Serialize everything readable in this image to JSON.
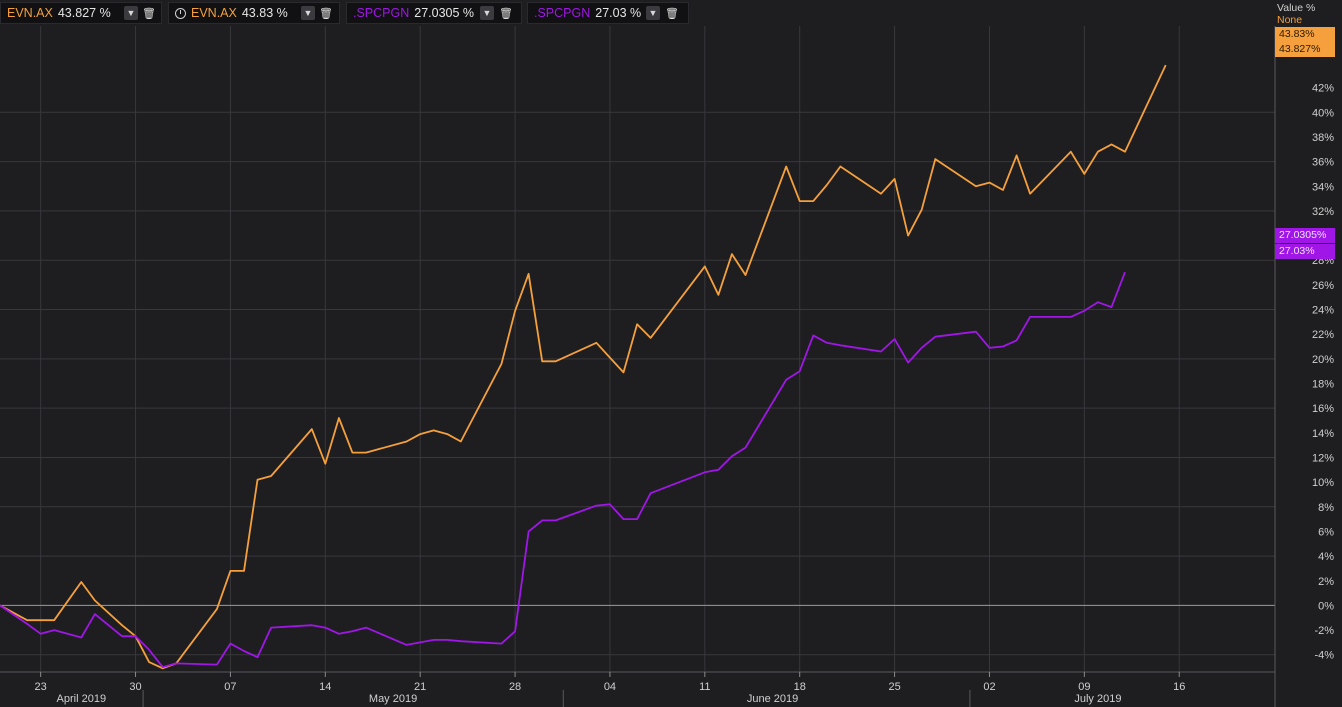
{
  "colors": {
    "evn": "#f5a03c",
    "spc": "#a016e6",
    "background": "#1e1e21",
    "grid": "#38383c",
    "zero_line": "#8c8c8c"
  },
  "legend": [
    {
      "symbol": "EVN.AX",
      "value": "43.827 %",
      "color": "#f5a03c",
      "clock": false,
      "dropdown_icon": "chevron-down-icon",
      "trash_icon": "trash-icon"
    },
    {
      "symbol": "EVN.AX",
      "value": "43.83 %",
      "color": "#f5a03c",
      "clock": true,
      "dropdown_icon": "chevron-down-icon",
      "trash_icon": "trash-icon"
    },
    {
      "symbol": ".SPCPGN",
      "value": "27.0305 %",
      "color": "#a016e6",
      "clock": false,
      "dropdown_icon": "chevron-down-icon",
      "trash_icon": "trash-icon"
    },
    {
      "symbol": ".SPCPGN",
      "value": "27.03 %",
      "color": "#a016e6",
      "clock": false,
      "dropdown_icon": "chevron-down-icon",
      "trash_icon": "trash-icon"
    }
  ],
  "axis_header": {
    "title": "Value %",
    "mode": "None"
  },
  "last_value_tags": [
    {
      "text": "43.83%",
      "color": "#f5a03c",
      "value": 43.83
    },
    {
      "text": "43.827%",
      "color": "#f5a03c",
      "value": 43.827
    },
    {
      "text": "27.0305%",
      "color": "#a016e6",
      "value": 27.0305
    },
    {
      "text": "27.03%",
      "color": "#a016e6",
      "value": 27.03
    }
  ],
  "chart_data": {
    "type": "line",
    "y_ticks": [
      "42%",
      "40%",
      "38%",
      "36%",
      "34%",
      "32%",
      "30%",
      "28%",
      "26%",
      "24%",
      "22%",
      "20%",
      "18%",
      "16%",
      "14%",
      "12%",
      "10%",
      "8%",
      "6%",
      "4%",
      "2%",
      "0%",
      "-2%",
      "-4%"
    ],
    "y_tick_values": [
      42,
      40,
      38,
      36,
      34,
      32,
      30,
      28,
      26,
      24,
      22,
      20,
      18,
      16,
      14,
      12,
      10,
      8,
      6,
      4,
      2,
      0,
      -2,
      -4
    ],
    "ylim": [
      -5.4,
      47
    ],
    "x_ticks": [
      "23",
      "30",
      "07",
      "14",
      "21",
      "28",
      "04",
      "11",
      "18",
      "25",
      "02",
      "09",
      "16"
    ],
    "x_tick_dates": [
      "2019-04-23",
      "2019-04-30",
      "2019-05-07",
      "2019-05-14",
      "2019-05-21",
      "2019-05-28",
      "2019-06-04",
      "2019-06-11",
      "2019-06-18",
      "2019-06-25",
      "2019-07-02",
      "2019-07-09",
      "2019-07-16"
    ],
    "months": [
      {
        "label": "April 2019",
        "date": "2019-04-26"
      },
      {
        "label": "May 2019",
        "date": "2019-05-19"
      },
      {
        "label": "June 2019",
        "date": "2019-06-16"
      },
      {
        "label": "July 2019",
        "date": "2019-07-10"
      }
    ],
    "month_separators": [
      "2019-05-01",
      "2019-06-01",
      "2019-07-01"
    ],
    "xlim": [
      "2019-04-20",
      "2019-07-21"
    ],
    "series": [
      {
        "name": "EVN.AX",
        "color": "#f5a03c",
        "points": [
          [
            "2019-04-20",
            0
          ],
          [
            "2019-04-22",
            -1.2
          ],
          [
            "2019-04-23",
            -1.2
          ],
          [
            "2019-04-24",
            -1.2
          ],
          [
            "2019-04-26",
            1.9
          ],
          [
            "2019-04-27",
            0.4
          ],
          [
            "2019-04-29",
            -1.6
          ],
          [
            "2019-04-30",
            -2.5
          ],
          [
            "2019-05-01",
            -4.6
          ],
          [
            "2019-05-02",
            -5.1
          ],
          [
            "2019-05-03",
            -4.7
          ],
          [
            "2019-05-06",
            -0.3
          ],
          [
            "2019-05-07",
            2.8
          ],
          [
            "2019-05-08",
            2.8
          ],
          [
            "2019-05-09",
            10.2
          ],
          [
            "2019-05-10",
            10.5
          ],
          [
            "2019-05-13",
            14.3
          ],
          [
            "2019-05-14",
            11.5
          ],
          [
            "2019-05-15",
            15.2
          ],
          [
            "2019-05-16",
            12.4
          ],
          [
            "2019-05-17",
            12.4
          ],
          [
            "2019-05-20",
            13.3
          ],
          [
            "2019-05-21",
            13.9
          ],
          [
            "2019-05-22",
            14.2
          ],
          [
            "2019-05-23",
            13.9
          ],
          [
            "2019-05-24",
            13.3
          ],
          [
            "2019-05-27",
            19.6
          ],
          [
            "2019-05-28",
            23.9
          ],
          [
            "2019-05-29",
            26.9
          ],
          [
            "2019-05-30",
            19.8
          ],
          [
            "2019-05-31",
            19.8
          ],
          [
            "2019-06-03",
            21.3
          ],
          [
            "2019-06-04",
            20.1
          ],
          [
            "2019-06-05",
            18.9
          ],
          [
            "2019-06-06",
            22.8
          ],
          [
            "2019-06-07",
            21.7
          ],
          [
            "2019-06-11",
            27.5
          ],
          [
            "2019-06-12",
            25.2
          ],
          [
            "2019-06-13",
            28.5
          ],
          [
            "2019-06-14",
            26.8
          ],
          [
            "2019-06-17",
            35.6
          ],
          [
            "2019-06-18",
            32.8
          ],
          [
            "2019-06-19",
            32.8
          ],
          [
            "2019-06-20",
            34.1
          ],
          [
            "2019-06-21",
            35.6
          ],
          [
            "2019-06-24",
            33.4
          ],
          [
            "2019-06-25",
            34.6
          ],
          [
            "2019-06-26",
            30.0
          ],
          [
            "2019-06-27",
            32.1
          ],
          [
            "2019-06-28",
            36.2
          ],
          [
            "2019-07-01",
            34.0
          ],
          [
            "2019-07-02",
            34.3
          ],
          [
            "2019-07-03",
            33.7
          ],
          [
            "2019-07-04",
            36.5
          ],
          [
            "2019-07-05",
            33.4
          ],
          [
            "2019-07-08",
            36.8
          ],
          [
            "2019-07-09",
            35.0
          ],
          [
            "2019-07-10",
            36.8
          ],
          [
            "2019-07-11",
            37.4
          ],
          [
            "2019-07-12",
            36.8
          ],
          [
            "2019-07-15",
            43.83
          ]
        ]
      },
      {
        "name": ".SPCPGN",
        "color": "#a016e6",
        "points": [
          [
            "2019-04-20",
            0
          ],
          [
            "2019-04-22",
            -1.5
          ],
          [
            "2019-04-23",
            -2.3
          ],
          [
            "2019-04-24",
            -2.0
          ],
          [
            "2019-04-26",
            -2.6
          ],
          [
            "2019-04-27",
            -0.7
          ],
          [
            "2019-04-29",
            -2.5
          ],
          [
            "2019-04-30",
            -2.5
          ],
          [
            "2019-05-01",
            -3.6
          ],
          [
            "2019-05-02",
            -5.0
          ],
          [
            "2019-05-03",
            -4.7
          ],
          [
            "2019-05-06",
            -4.8
          ],
          [
            "2019-05-07",
            -3.1
          ],
          [
            "2019-05-08",
            -3.7
          ],
          [
            "2019-05-09",
            -4.2
          ],
          [
            "2019-05-10",
            -1.8
          ],
          [
            "2019-05-13",
            -1.6
          ],
          [
            "2019-05-14",
            -1.8
          ],
          [
            "2019-05-15",
            -2.3
          ],
          [
            "2019-05-16",
            -2.1
          ],
          [
            "2019-05-17",
            -1.8
          ],
          [
            "2019-05-20",
            -3.2
          ],
          [
            "2019-05-21",
            -3.0
          ],
          [
            "2019-05-22",
            -2.8
          ],
          [
            "2019-05-23",
            -2.8
          ],
          [
            "2019-05-24",
            -2.9
          ],
          [
            "2019-05-27",
            -3.1
          ],
          [
            "2019-05-28",
            -2.1
          ],
          [
            "2019-05-29",
            6.0
          ],
          [
            "2019-05-30",
            6.9
          ],
          [
            "2019-05-31",
            6.9
          ],
          [
            "2019-06-03",
            8.1
          ],
          [
            "2019-06-04",
            8.2
          ],
          [
            "2019-06-05",
            7.0
          ],
          [
            "2019-06-06",
            7.0
          ],
          [
            "2019-06-07",
            9.1
          ],
          [
            "2019-06-11",
            10.8
          ],
          [
            "2019-06-12",
            11.0
          ],
          [
            "2019-06-13",
            12.1
          ],
          [
            "2019-06-14",
            12.8
          ],
          [
            "2019-06-17",
            18.3
          ],
          [
            "2019-06-18",
            19.0
          ],
          [
            "2019-06-19",
            21.9
          ],
          [
            "2019-06-20",
            21.3
          ],
          [
            "2019-06-21",
            21.1
          ],
          [
            "2019-06-24",
            20.6
          ],
          [
            "2019-06-25",
            21.6
          ],
          [
            "2019-06-26",
            19.7
          ],
          [
            "2019-06-27",
            20.9
          ],
          [
            "2019-06-28",
            21.8
          ],
          [
            "2019-07-01",
            22.2
          ],
          [
            "2019-07-02",
            20.9
          ],
          [
            "2019-07-03",
            21.0
          ],
          [
            "2019-07-04",
            21.5
          ],
          [
            "2019-07-05",
            23.4
          ],
          [
            "2019-07-08",
            23.4
          ],
          [
            "2019-07-09",
            23.9
          ],
          [
            "2019-07-10",
            24.6
          ],
          [
            "2019-07-11",
            24.2
          ],
          [
            "2019-07-12",
            27.03
          ]
        ]
      }
    ]
  }
}
